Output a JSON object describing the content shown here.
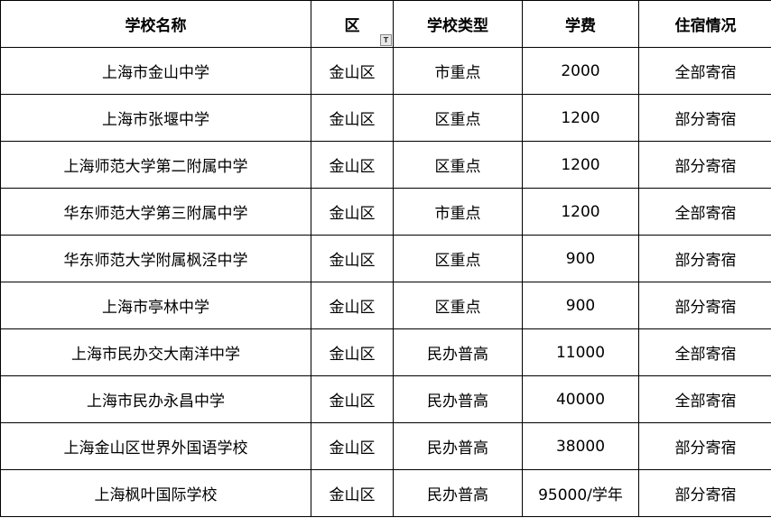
{
  "table": {
    "headers": [
      "学校名称",
      "区",
      "学校类型",
      "学费",
      "住宿情况"
    ],
    "filter_icon": "filter-icon",
    "rows": [
      [
        "上海市金山中学",
        "金山区",
        "市重点",
        "2000",
        "全部寄宿"
      ],
      [
        "上海市张堰中学",
        "金山区",
        "区重点",
        "1200",
        "部分寄宿"
      ],
      [
        "上海师范大学第二附属中学",
        "金山区",
        "区重点",
        "1200",
        "部分寄宿"
      ],
      [
        "华东师范大学第三附属中学",
        "金山区",
        "市重点",
        "1200",
        "全部寄宿"
      ],
      [
        "华东师范大学附属枫泾中学",
        "金山区",
        "区重点",
        "900",
        "部分寄宿"
      ],
      [
        "上海市亭林中学",
        "金山区",
        "区重点",
        "900",
        "部分寄宿"
      ],
      [
        "上海市民办交大南洋中学",
        "金山区",
        "民办普高",
        "11000",
        "全部寄宿"
      ],
      [
        "上海市民办永昌中学",
        "金山区",
        "民办普高",
        "40000",
        "全部寄宿"
      ],
      [
        "上海金山区世界外国语学校",
        "金山区",
        "民办普高",
        "38000",
        "部分寄宿"
      ],
      [
        "上海枫叶国际学校",
        "金山区",
        "民办普高",
        "95000/学年",
        "部分寄宿"
      ]
    ]
  }
}
